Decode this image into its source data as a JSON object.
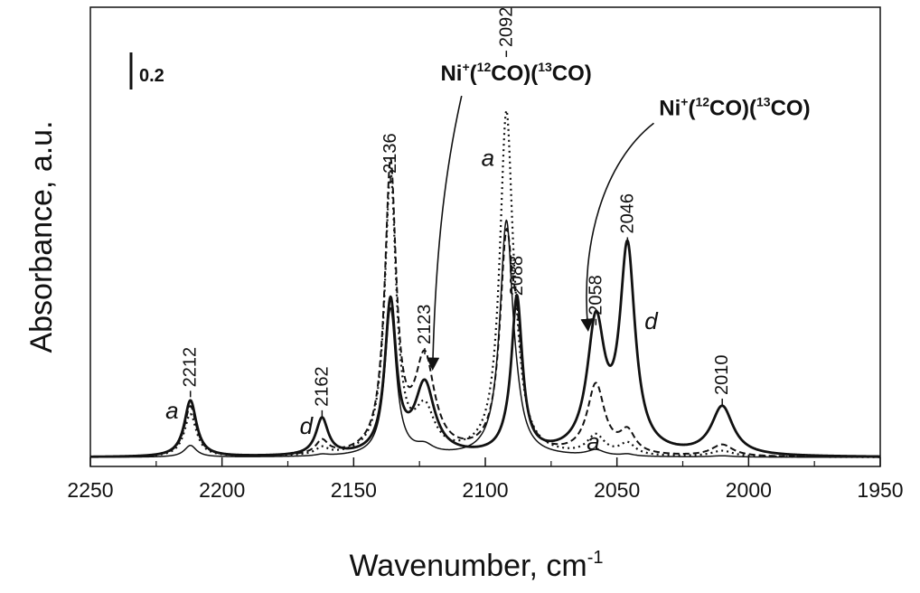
{
  "chart_data": {
    "type": "line",
    "xlabel": "Wavenumber, cm",
    "xlabel_sup": "-1",
    "ylabel": "Absorbance, a.u.",
    "xlim": [
      2250,
      1950
    ],
    "x_reversed": true,
    "xticks": [
      2250,
      2200,
      2150,
      2100,
      2050,
      2000,
      1950
    ],
    "ylim": [
      0,
      1.1
    ],
    "scale_bar": {
      "label": "0.2",
      "value": 0.2
    },
    "peak_labels": [
      {
        "text": "2212",
        "x": 2212,
        "y": 0.155
      },
      {
        "text": "2162",
        "x": 2162,
        "y": 0.105
      },
      {
        "text": "2136",
        "x": 2136,
        "y": 0.705
      },
      {
        "text": "2123",
        "x": 2123,
        "y": 0.265
      },
      {
        "text": "2092",
        "x": 2092,
        "y": 1.03
      },
      {
        "text": "2088",
        "x": 2088,
        "y": 0.39
      },
      {
        "text": "2058",
        "x": 2058,
        "y": 0.34
      },
      {
        "text": "2046",
        "x": 2046,
        "y": 0.55
      },
      {
        "text": "2010",
        "x": 2010,
        "y": 0.135
      }
    ],
    "curve_letters": [
      {
        "text": "a",
        "x": 2219,
        "y": 0.1
      },
      {
        "text": "d",
        "x": 2168,
        "y": 0.06
      },
      {
        "text": "a",
        "x": 2099,
        "y": 0.75
      },
      {
        "text": "a",
        "x": 2059,
        "y": 0.02
      },
      {
        "text": "d",
        "x": 2037,
        "y": 0.33
      }
    ],
    "annotations": [
      {
        "parts": [
          "Ni",
          "+",
          "(",
          "12",
          "CO)(",
          "13",
          "CO)"
        ],
        "x": 2117,
        "y": 0.97,
        "arrow_path": [
          [
            2109,
            0.93
          ],
          [
            2116,
            0.72
          ],
          [
            2119,
            0.5
          ],
          [
            2120,
            0.23
          ]
        ]
      },
      {
        "parts": [
          "Ni",
          "+",
          "(",
          "12",
          "CO)(",
          "13",
          "CO)"
        ],
        "x": 2034,
        "y": 0.88,
        "arrow_path": [
          [
            2036,
            0.86
          ],
          [
            2055,
            0.76
          ],
          [
            2064,
            0.55
          ],
          [
            2061,
            0.33
          ]
        ]
      }
    ],
    "series": [
      {
        "style": "solid-thin",
        "peaks": [
          [
            2212,
            0.03,
            2.8
          ],
          [
            2162,
            0.004,
            2.8
          ],
          [
            2136,
            0.38,
            2.6
          ],
          [
            2123,
            0.02,
            4
          ],
          [
            2092,
            0.6,
            3
          ],
          [
            2088,
            0.03,
            2.5
          ],
          [
            2058,
            0.015,
            4
          ],
          [
            2046,
            0.005,
            3
          ],
          [
            2010,
            0.003,
            5
          ]
        ]
      },
      {
        "style": "dotted",
        "peaks": [
          [
            2212,
            0.11,
            2.8
          ],
          [
            2162,
            0.018,
            2.8
          ],
          [
            2136,
            0.72,
            2.6
          ],
          [
            2123,
            0.11,
            4.5
          ],
          [
            2092,
            0.87,
            3
          ],
          [
            2088,
            0.06,
            2.5
          ],
          [
            2058,
            0.05,
            4
          ],
          [
            2046,
            0.03,
            3.5
          ],
          [
            2010,
            0.015,
            5
          ]
        ]
      },
      {
        "style": "dashed",
        "peaks": [
          [
            2212,
            0.13,
            2.8
          ],
          [
            2162,
            0.035,
            2.8
          ],
          [
            2136,
            0.74,
            2.6
          ],
          [
            2123,
            0.24,
            4.5
          ],
          [
            2092,
            0.52,
            3
          ],
          [
            2088,
            0.2,
            2.5
          ],
          [
            2058,
            0.18,
            4
          ],
          [
            2046,
            0.055,
            3.5
          ],
          [
            2010,
            0.03,
            5
          ]
        ]
      },
      {
        "style": "solid-thick",
        "peaks": [
          [
            2212,
            0.145,
            2.8
          ],
          [
            2162,
            0.095,
            2.8
          ],
          [
            2136,
            0.39,
            2.6
          ],
          [
            2123,
            0.18,
            4.5
          ],
          [
            2092,
            0.01,
            3
          ],
          [
            2088,
            0.4,
            2.5
          ],
          [
            2058,
            0.33,
            4
          ],
          [
            2046,
            0.52,
            3.5
          ],
          [
            2010,
            0.125,
            5
          ]
        ]
      }
    ]
  }
}
